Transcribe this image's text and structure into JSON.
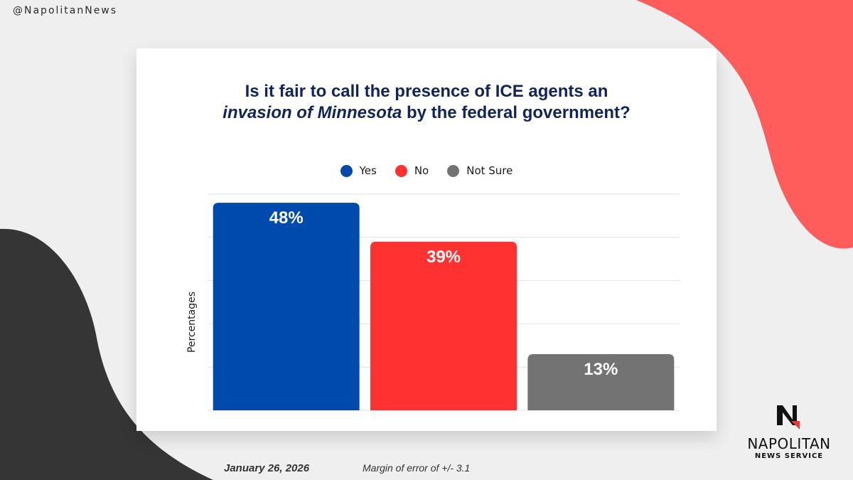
{
  "handle": "@NapolitanNews",
  "title_line1": "Is it fair to call the presence of ICE agents an",
  "title_line2_italic": "invasion of Minnesota",
  "title_line2_rest": " by the federal government?",
  "chart_data": {
    "type": "bar",
    "categories": [
      "Yes",
      "No",
      "Not Sure"
    ],
    "values": [
      48,
      39,
      13
    ],
    "value_labels": [
      "48%",
      "39%",
      "13%"
    ],
    "colors": [
      "#004aad",
      "#ff3131",
      "#737373"
    ],
    "ylabel": "Percentages",
    "ylim": [
      0,
      50
    ],
    "grid": true,
    "legend_position": "top-center"
  },
  "footer": {
    "date": "January 26, 2026",
    "margin_of_error": "Margin of error of +/- 3.1"
  },
  "logo": {
    "name": "NAPOLITAN",
    "subtitle": "NEWS SERVICE"
  },
  "colors": {
    "title": "#12255b",
    "decor_red": "#ff5c5c",
    "decor_dark": "#353535"
  }
}
